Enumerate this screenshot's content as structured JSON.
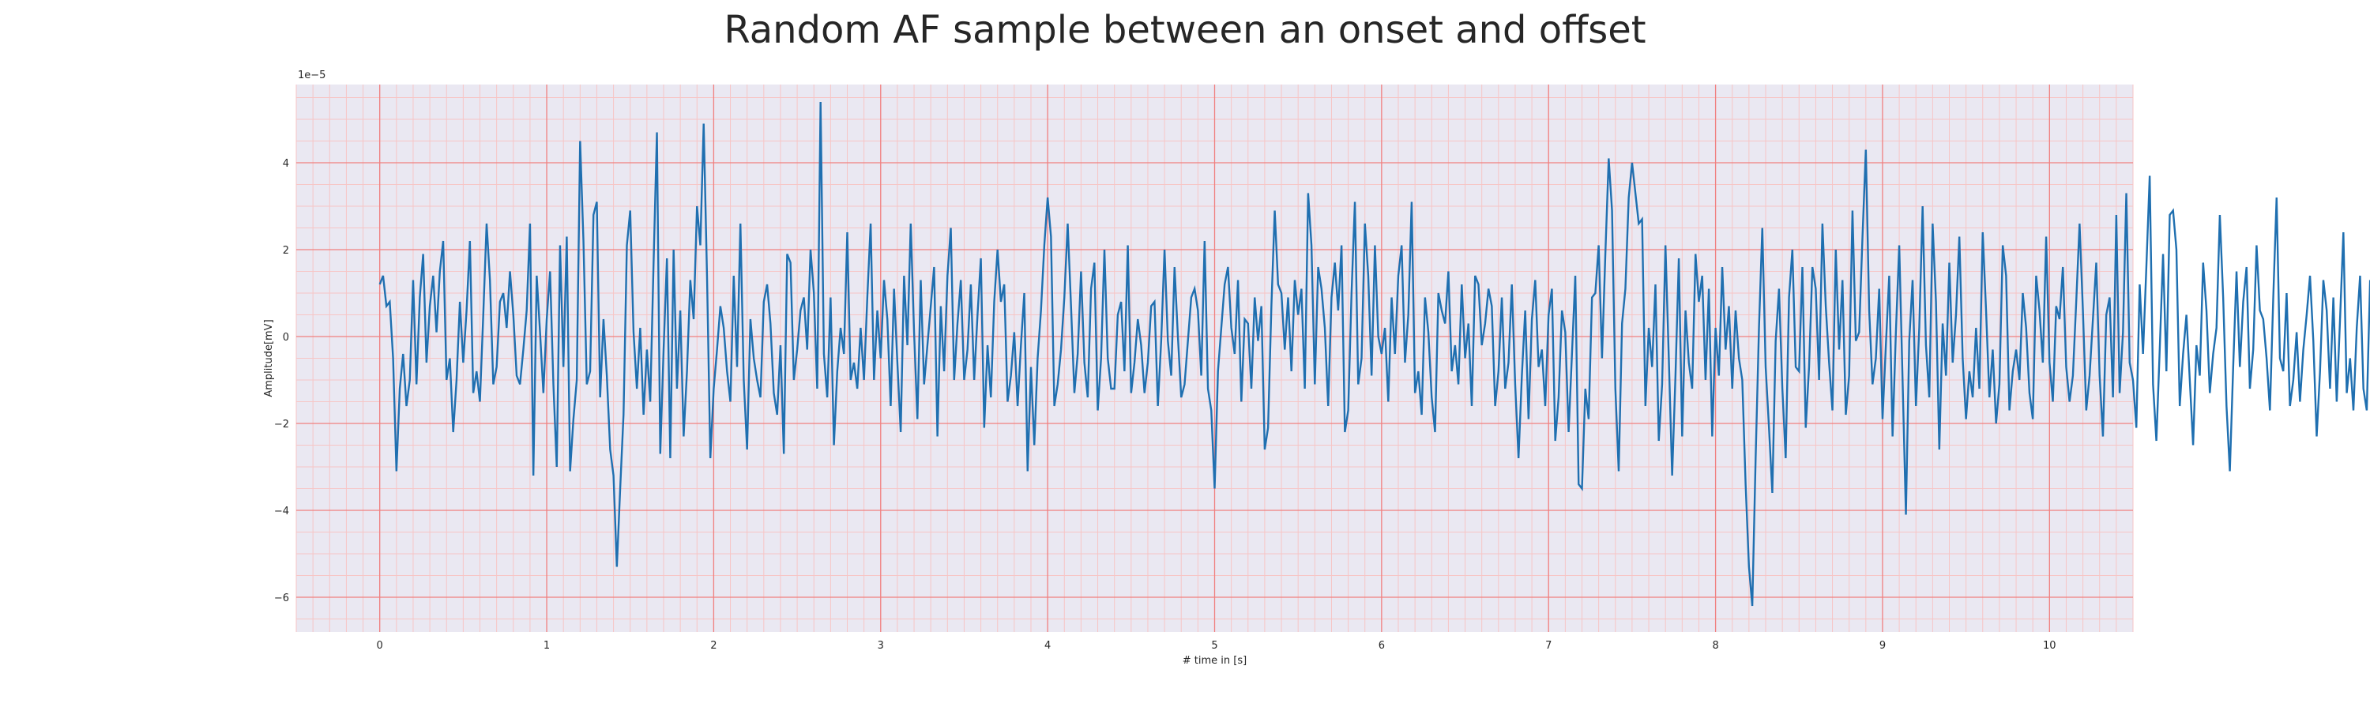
{
  "chart_data": {
    "type": "line",
    "title": "Random AF sample between an onset and offset",
    "xlabel": "# time in [s]",
    "ylabel": "Amplitude[mV]",
    "y_offset_text": "1e−5",
    "xlim": [
      -0.5,
      10.5
    ],
    "ylim": [
      -6.8,
      5.8
    ],
    "xticks": [
      0,
      1,
      2,
      3,
      4,
      5,
      6,
      7,
      8,
      9,
      10
    ],
    "yticks": [
      -6,
      -4,
      -2,
      0,
      2,
      4
    ],
    "xtick_labels": [
      "0",
      "1",
      "2",
      "3",
      "4",
      "5",
      "6",
      "7",
      "8",
      "9",
      "10"
    ],
    "ytick_labels": [
      "−6",
      "−4",
      "−2",
      "0",
      "2",
      "4"
    ],
    "grid": true,
    "minor_grid": true,
    "colors": {
      "line": "#1f6fb0",
      "major_grid": "#f08080",
      "minor_grid": "#f7c5c5",
      "background": "#eae8f2"
    },
    "series": [
      {
        "name": "",
        "x_start": 0,
        "x_step": 0.02,
        "values": [
          1.2,
          1.4,
          0.7,
          0.8,
          -0.5,
          -3.1,
          -1.2,
          -0.4,
          -1.6,
          -1.0,
          1.3,
          -1.1,
          0.9,
          1.9,
          -0.6,
          0.7,
          1.4,
          0.1,
          1.5,
          2.2,
          -1.0,
          -0.5,
          -2.2,
          -1.0,
          0.8,
          -0.6,
          0.6,
          2.2,
          -1.3,
          -0.8,
          -1.5,
          0.5,
          2.6,
          1.3,
          -1.1,
          -0.7,
          0.8,
          1.0,
          0.2,
          1.5,
          0.5,
          -0.9,
          -1.1,
          -0.3,
          0.6,
          2.6,
          -3.2,
          1.4,
          0.1,
          -1.3,
          0.4,
          1.5,
          -1.1,
          -3.0,
          2.1,
          -0.7,
          2.3,
          -3.1,
          -1.9,
          -1.0,
          4.5,
          2.2,
          -1.1,
          -0.8,
          2.8,
          3.1,
          -1.4,
          0.4,
          -0.9,
          -2.6,
          -3.2,
          -5.3,
          -3.5,
          -1.8,
          2.1,
          2.9,
          0.1,
          -1.2,
          0.2,
          -1.8,
          -0.3,
          -1.5,
          1.7,
          4.7,
          -2.7,
          -0.3,
          1.8,
          -2.8,
          2.0,
          -1.2,
          0.6,
          -2.3,
          -0.8,
          1.3,
          0.4,
          3.0,
          2.1,
          4.9,
          1.4,
          -2.8,
          -1.2,
          -0.3,
          0.7,
          0.2,
          -0.8,
          -1.5,
          1.4,
          -0.7,
          2.6,
          -1.0,
          -2.6,
          0.4,
          -0.5,
          -1.0,
          -1.4,
          0.8,
          1.2,
          0.3,
          -1.3,
          -1.8,
          -0.2,
          -2.7,
          1.9,
          1.7,
          -1.0,
          -0.3,
          0.6,
          0.9,
          -0.3,
          2.0,
          1.0,
          -1.2,
          5.4,
          -0.4,
          -1.4,
          0.9,
          -2.5,
          -0.8,
          0.2,
          -0.4,
          2.4,
          -1.0,
          -0.6,
          -1.2,
          0.2,
          -1.0,
          0.9,
          2.6,
          -1.0,
          0.6,
          -0.5,
          1.3,
          0.4,
          -1.6,
          1.1,
          -0.6,
          -2.2,
          1.4,
          -0.2,
          2.6,
          0.1,
          -1.9,
          1.3,
          -1.1,
          -0.2,
          0.7,
          1.6,
          -2.3,
          0.7,
          -0.8,
          1.4,
          2.5,
          -1.0,
          0.3,
          1.3,
          -1.0,
          -0.3,
          1.2,
          -1.0,
          0.5,
          1.8,
          -2.1,
          -0.2,
          -1.4,
          0.8,
          2.0,
          0.8,
          1.2,
          -1.5,
          -0.9,
          0.1,
          -1.6,
          -0.2,
          1.0,
          -3.1,
          -0.7,
          -2.5,
          -0.5,
          0.6,
          2.1,
          3.2,
          2.3,
          -1.6,
          -1.1,
          -0.3,
          0.9,
          2.6,
          0.7,
          -1.3,
          -0.4,
          1.5,
          -0.6,
          -1.4,
          1.1,
          1.7,
          -1.7,
          -0.5,
          2.0,
          -0.5,
          -1.2,
          -1.2,
          0.5,
          0.8,
          -0.8,
          2.1,
          -1.3,
          -0.6,
          0.4,
          -0.2,
          -1.3,
          -0.6,
          0.7,
          0.8,
          -1.6,
          -0.1,
          2.0,
          -0.1,
          -0.9,
          1.6,
          0.0,
          -1.4,
          -1.1,
          -0.1,
          0.9,
          1.1,
          0.6,
          -0.9,
          2.2,
          -1.2,
          -1.7,
          -3.5,
          -0.8,
          0.2,
          1.2,
          1.6,
          0.2,
          -0.4,
          1.3,
          -1.5,
          0.4,
          0.3,
          -1.2,
          0.9,
          -0.1,
          0.7,
          -2.6,
          -2.1,
          0.7,
          2.9,
          1.2,
          1.0,
          -0.3,
          0.9,
          -0.8,
          1.3,
          0.5,
          1.1,
          -1.2,
          3.3,
          2.1,
          -1.1,
          1.6,
          1.1,
          0.2,
          -1.6,
          0.9,
          1.7,
          0.6,
          2.1,
          -2.2,
          -1.7,
          1.0,
          3.1,
          -1.1,
          -0.5,
          2.6,
          1.4,
          -0.9,
          2.1,
          0.0,
          -0.4,
          0.2,
          -1.5,
          0.9,
          -0.4,
          1.4,
          2.1,
          -0.6,
          0.5,
          3.1,
          -1.3,
          -0.8,
          -1.8,
          0.9,
          0.1,
          -1.4,
          -2.2,
          1.0,
          0.6,
          0.3,
          1.5,
          -0.8,
          -0.2,
          -1.1,
          1.2,
          -0.5,
          0.3,
          -1.6,
          1.4,
          1.2,
          -0.2,
          0.3,
          1.1,
          0.7,
          -1.6,
          -0.8,
          0.9,
          -1.2,
          -0.6,
          1.2,
          -1.1,
          -2.8,
          -0.9,
          0.6,
          -1.9,
          0.4,
          1.3,
          -0.7,
          -0.3,
          -1.6,
          0.5,
          1.1,
          -2.4,
          -1.4,
          0.6,
          0.1,
          -2.2,
          -0.4,
          1.4,
          -3.4,
          -3.5,
          -1.2,
          -1.9,
          0.9,
          1.0,
          2.1,
          -0.5,
          1.9,
          4.1,
          2.9,
          -1.2,
          -3.1,
          0.3,
          1.1,
          3.2,
          4.0,
          3.3,
          2.6,
          2.7,
          -1.6,
          0.2,
          -0.7,
          1.2,
          -2.4,
          -1.1,
          2.1,
          -0.5,
          -3.2,
          -0.9,
          1.8,
          -2.3,
          0.6,
          -0.6,
          -1.2,
          1.9,
          0.8,
          1.4,
          -1.0,
          1.1,
          -2.3,
          0.2,
          -0.9,
          1.6,
          -0.3,
          0.7,
          -1.2,
          0.6,
          -0.5,
          -1.0,
          -3.4,
          -5.3,
          -6.2,
          -2.8,
          0.2,
          2.5,
          -0.7,
          -2.1,
          -3.6,
          -0.1,
          1.1,
          -1.2,
          -2.8,
          0.9,
          2.0,
          -0.7,
          -0.8,
          1.6,
          -2.1,
          -0.7,
          1.6,
          1.1,
          -1.0,
          2.6,
          0.7,
          -0.6,
          -1.7,
          2.0,
          -0.3,
          1.3,
          -1.8,
          -0.9,
          2.9,
          -0.1,
          0.1,
          2.3,
          4.3,
          0.6,
          -1.1,
          -0.5,
          1.1,
          -1.9,
          -0.2,
          1.4,
          -2.3,
          0.1,
          2.1,
          -1.0,
          -4.1,
          -0.1,
          1.3,
          -1.6,
          0.2,
          3.0,
          -0.2,
          -1.4,
          2.6,
          0.8,
          -2.6,
          0.3,
          -0.9,
          1.7,
          -0.6,
          0.5,
          2.3,
          -0.5,
          -1.9,
          -0.8,
          -1.4,
          0.2,
          -1.2,
          2.4,
          0.6,
          -1.4,
          -0.3,
          -2.0,
          -1.1,
          2.1,
          1.4,
          -1.7,
          -0.8,
          -0.3,
          -1.0,
          1.0,
          0.2,
          -1.3,
          -1.9,
          1.4,
          0.6,
          -0.6,
          2.3,
          -0.6,
          -1.5,
          0.7,
          0.4,
          1.6,
          -0.7,
          -1.5,
          -0.9,
          0.8,
          2.6,
          0.6,
          -1.7,
          -0.9,
          0.4,
          1.7,
          -0.9,
          -2.3,
          0.5,
          0.9,
          -1.4,
          2.8,
          -1.3,
          0.1,
          3.3,
          -0.6,
          -1.0,
          -2.1,
          1.2,
          -0.4,
          1.6,
          3.7,
          -1.1,
          -2.4,
          -0.3,
          1.9,
          -0.8,
          2.8,
          2.9,
          2.0,
          -1.6,
          -0.4,
          0.5,
          -1.0,
          -2.5,
          -0.2,
          -0.9,
          1.7,
          0.6,
          -1.3,
          -0.4,
          0.2,
          2.8,
          0.9,
          -1.6,
          -3.1,
          -0.7,
          1.5,
          -0.7,
          0.8,
          1.6,
          -1.2,
          -0.3,
          2.1,
          0.6,
          0.4,
          -0.5,
          -1.7,
          0.9,
          3.2,
          -0.5,
          -0.8,
          1.0,
          -1.6,
          -1.0,
          0.1,
          -1.5,
          -0.3,
          0.5,
          1.4,
          -0.1,
          -2.3,
          -0.8,
          1.3,
          0.6,
          -1.2,
          0.9,
          -1.5,
          0.4,
          2.4,
          -1.3,
          -0.5,
          -1.7,
          0.2,
          1.4,
          -1.2,
          -1.7,
          1.3,
          -0.8,
          2.6,
          -1.2,
          0.4,
          1.4,
          -0.9,
          -1.9,
          -0.3,
          1.0,
          2.1,
          0.8,
          1.1,
          0.6,
          -1.4,
          0.3,
          2.0,
          0.0,
          -1.0,
          -0.8,
          -2.8,
          1.2,
          -1.0,
          1.7,
          -0.5,
          0.2,
          1.6,
          -2.0,
          -1.1,
          1.9,
          0.4,
          -0.7,
          0.9,
          -1.3,
          -1.0,
          0.3,
          1.6,
          -0.5,
          -2.3,
          2.0,
          0.4,
          2.3,
          1.0,
          -2.4,
          0.7,
          -1.4,
          1.2,
          -0.1,
          1.6,
          -1.4,
          -2.0,
          -1.0,
          0.5,
          0.3,
          2.3,
          1.3,
          1.0,
          4.7,
          0.9,
          -1.5,
          -3.4,
          -5.0,
          -1.0,
          1.8,
          1.1,
          2.4,
          -0.2,
          2.6,
          0.9,
          -1.6,
          -2.1,
          0.2,
          1.5,
          -0.6,
          -2.9,
          -4.4,
          -5.5,
          -0.5,
          2.5,
          0.3,
          -0.9,
          -2.6,
          1.8,
          1.4,
          0.7,
          -0.8,
          -1.2,
          1.7,
          -0.3,
          -1.5,
          2.0,
          0.8,
          -2.8,
          -0.5,
          1.8,
          1.3,
          -0.6,
          2.5,
          -0.7,
          -1.9,
          1.9,
          -0.5,
          0.2,
          0.9,
          -1.6,
          1.6,
          -1.5,
          -2.6,
          0.6,
          -0.7,
          3.6,
          -1.0,
          -0.2,
          1.4,
          -1.7,
          -1.0,
          1.8,
          -1.5,
          -0.6,
          0.6,
          -0.8,
          -3.1,
          0.9,
          0.2,
          -0.4,
          2.3,
          -1.6,
          -0.4,
          1.1,
          -0.9,
          0.6,
          -1.4,
          0.7,
          -0.9,
          1.5,
          -0.2,
          -1.0,
          2.5,
          0.1,
          -1.4,
          -2.9,
          1.0,
          0.5,
          2.1,
          -0.7,
          1.0,
          0.4,
          2.0,
          0.7,
          -1.0,
          -1.6,
          -0.8,
          1.1,
          0.2,
          -1.4,
          -1.1,
          0.9,
          2.0,
          1.4,
          -1.2,
          -4.1,
          -1.9,
          1.4,
          -0.3,
          3.6,
          1.3,
          -0.5,
          -2.2,
          -1.4,
          2.4,
          1.6,
          0.4,
          1.2,
          0.0,
          -1.7,
          -2.6,
          -1.0,
          2.0,
          0.7,
          2.4,
          -1.6,
          -0.5,
          -0.7,
          -1.9,
          -0.1,
          1.7,
          0.7,
          0.2,
          0.6,
          2.1,
          0.8,
          -0.1,
          1.3,
          1.6,
          3.0,
          1.6,
          -1.0,
          -2.9,
          0.1,
          -0.1,
          -1.9,
          -2.6,
          -2.1,
          0.4,
          -1.3,
          1.6,
          0.3,
          -0.9,
          -1.9,
          -0.2,
          1.2,
          -0.8,
          -1.5,
          0.6,
          -1.3,
          -2.9,
          0.7,
          1.5,
          1.9,
          0.8,
          -0.6,
          0.9,
          -1.0,
          0.4,
          2.2,
          0.1,
          -2.6,
          1.9,
          -1.4,
          0.6,
          -0.5,
          -1.8,
          -0.4,
          0.7,
          1.3,
          0.9,
          -1.2,
          -1.6,
          2.8,
          0.3,
          -1.2,
          -0.7,
          -2.4,
          0.4,
          -1.2,
          1.7,
          1.1,
          -1.5,
          0.8,
          0.3,
          2.6,
          0.2,
          -2.2,
          -1.0,
          1.2,
          1.6,
          -0.1,
          -1.1,
          3.4,
          1.1,
          -0.3,
          -2.7,
          -1.3,
          0.7,
          -2.2,
          0.3,
          1.2,
          -0.2,
          2.1,
          -0.7,
          0.9,
          -1.7,
          0.6,
          1.1,
          -1.6,
          -0.9,
          1.2,
          3.5,
          1.0,
          -1.4,
          -2.6,
          -0.4,
          0.5,
          1.8,
          -1.2,
          0.3,
          2.5,
          0.0,
          -2.4,
          -1.1,
          0.9,
          1.4,
          -0.6,
          -3.3,
          -1.0,
          1.2,
          0.4,
          2.2,
          -1.4,
          -0.6,
          1.3,
          0.5,
          0.9,
          1.6,
          2.6,
          0.6,
          1.2,
          0.9,
          2.0,
          -0.3,
          -0.8,
          -4.1,
          -0.4,
          2.9,
          1.6,
          3.5,
          1.1,
          0.7,
          -1.9,
          -0.2,
          1.5,
          -0.6,
          -1.6,
          0.9,
          2.8,
          -0.4,
          -1.0,
          1.6,
          -0.2,
          -2.8,
          -1.4,
          -0.9,
          0.9,
          0.7,
          -0.7,
          -1.4,
          -2.4,
          -0.6,
          0.8,
          0.9,
          0.6,
          0.8,
          -0.3,
          -0.8,
          0.4,
          -0.5,
          1.6,
          2.5,
          3.0,
          2.2,
          -1.0,
          -2.2,
          -1.3,
          0.4,
          -2.9
        ]
      }
    ]
  }
}
